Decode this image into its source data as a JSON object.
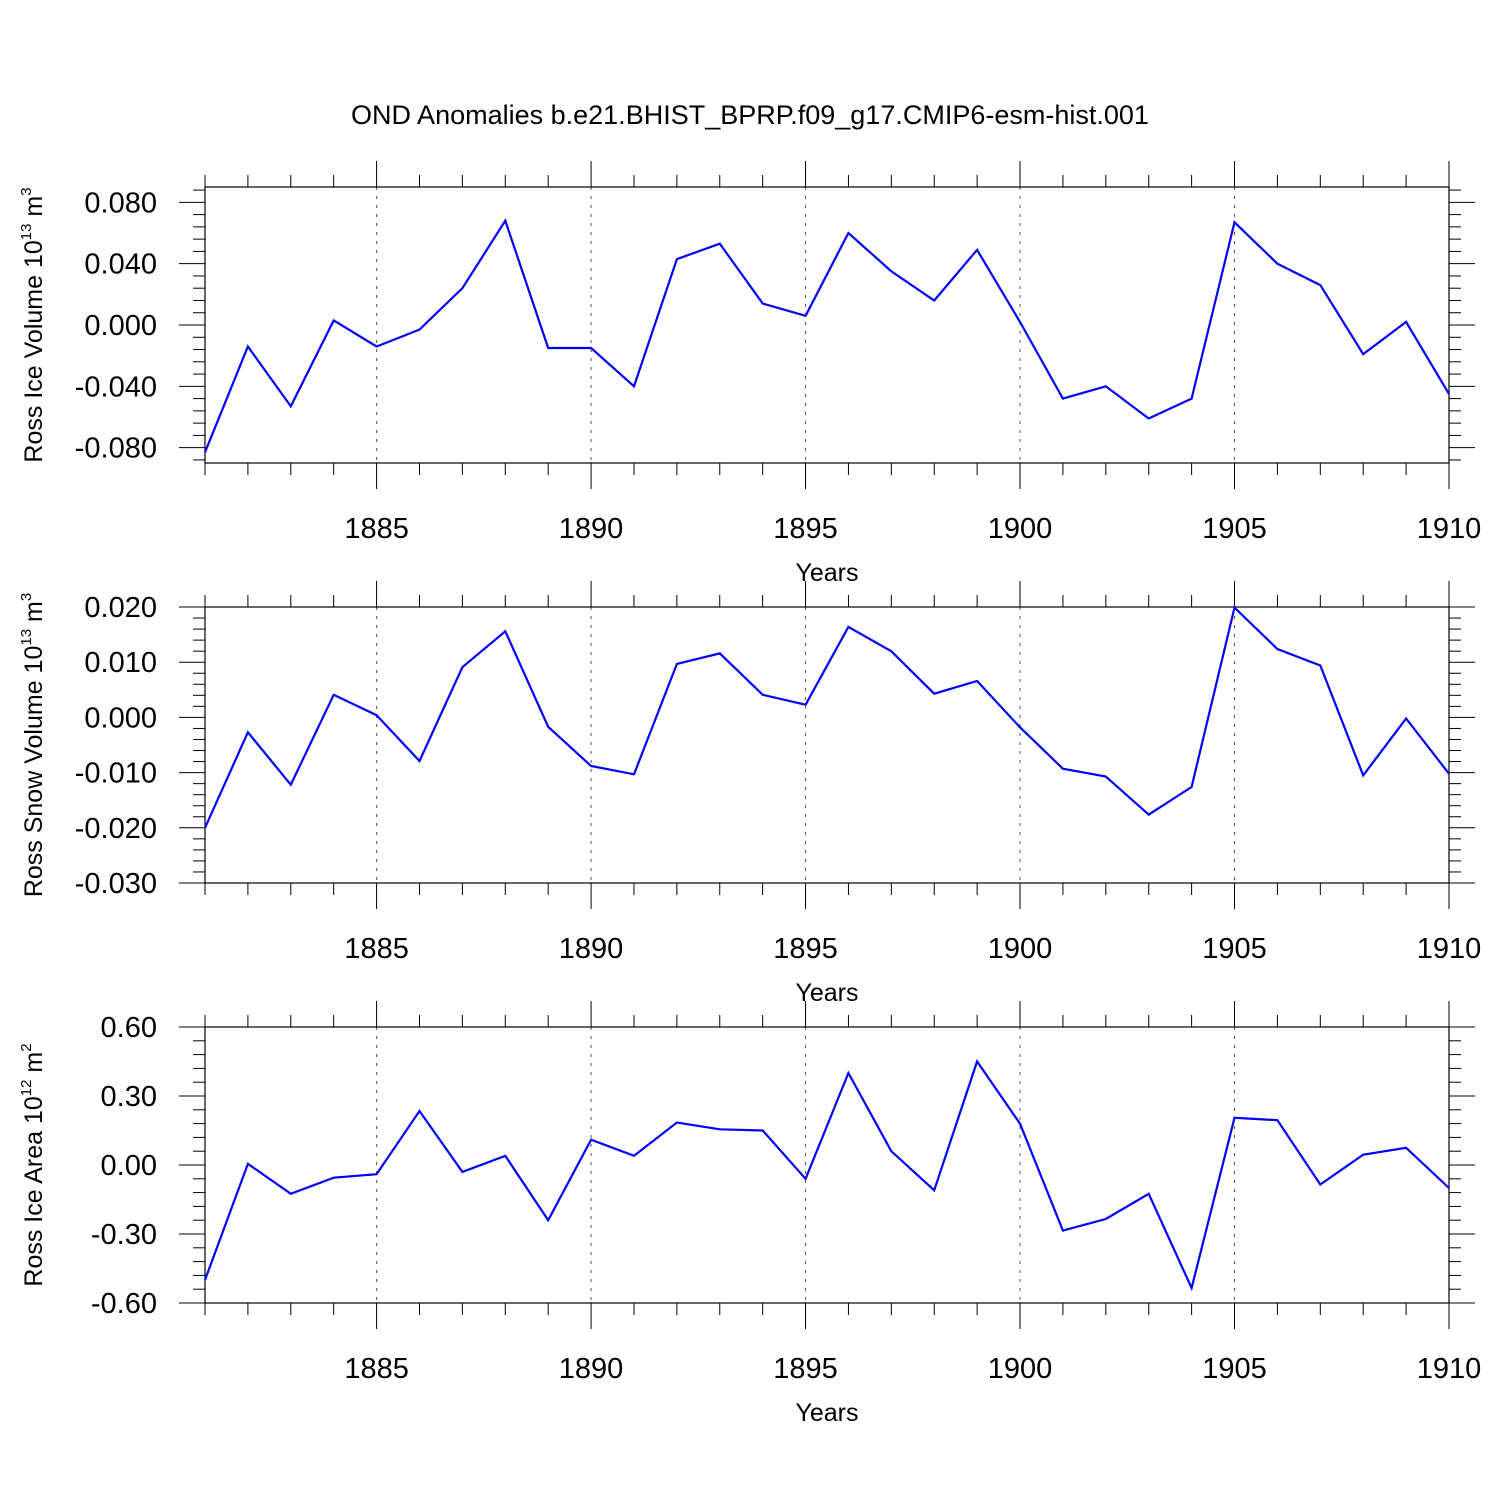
{
  "title": "OND Anomalies b.e21.BHIST_BPRP.f09_g17.CMIP6-esm-hist.001",
  "colors": {
    "line": "#0000ff",
    "axis": "#000000",
    "grid": "#555555"
  },
  "chart_data": [
    {
      "type": "line",
      "ylabel": {
        "main": "Ross Ice Volume 10",
        "exp": "13",
        "unit": " m",
        "unit_exp": "3"
      },
      "xlabel": "Years",
      "xlim": [
        1881,
        1910
      ],
      "ylim": [
        -0.09,
        0.09
      ],
      "yticks": [
        -0.08,
        -0.04,
        0.0,
        0.04,
        0.08
      ],
      "ytick_labels": [
        "-0.080",
        "-0.040",
        "0.000",
        "0.040",
        "0.080"
      ],
      "xticks": [
        1885,
        1890,
        1895,
        1900,
        1905,
        1910
      ],
      "xtick_labels": [
        "1885",
        "1890",
        "1895",
        "1900",
        "1905",
        "1910"
      ],
      "grid": "vertical-dashed",
      "series": [
        {
          "x": [
            1881,
            1882,
            1883,
            1884,
            1885,
            1886,
            1887,
            1888,
            1889,
            1890,
            1891,
            1892,
            1893,
            1894,
            1895,
            1896,
            1897,
            1898,
            1899,
            1900,
            1901,
            1902,
            1903,
            1904,
            1905,
            1906,
            1907,
            1908,
            1909,
            1910
          ],
          "values": [
            -0.083,
            -0.014,
            -0.053,
            0.003,
            -0.014,
            -0.003,
            0.024,
            0.068,
            -0.015,
            -0.015,
            -0.04,
            0.043,
            0.053,
            0.014,
            0.006,
            0.06,
            0.035,
            0.016,
            0.049,
            0.002,
            -0.048,
            -0.04,
            -0.061,
            -0.048,
            0.067,
            0.04,
            0.026,
            -0.019,
            0.002,
            -0.045
          ]
        }
      ]
    },
    {
      "type": "line",
      "ylabel": {
        "main": "Ross Snow Volume 10",
        "exp": "13",
        "unit": " m",
        "unit_exp": "3"
      },
      "xlabel": "Years",
      "xlim": [
        1881,
        1910
      ],
      "ylim": [
        -0.03,
        0.02
      ],
      "yticks": [
        -0.03,
        -0.02,
        -0.01,
        0.0,
        0.01,
        0.02
      ],
      "ytick_labels": [
        "-0.030",
        "-0.020",
        "-0.010",
        "0.000",
        "0.010",
        "0.020"
      ],
      "xticks": [
        1885,
        1890,
        1895,
        1900,
        1905,
        1910
      ],
      "xtick_labels": [
        "1885",
        "1890",
        "1895",
        "1900",
        "1905",
        "1910"
      ],
      "grid": "vertical-dashed",
      "series": [
        {
          "x": [
            1881,
            1882,
            1883,
            1884,
            1885,
            1886,
            1887,
            1888,
            1889,
            1890,
            1891,
            1892,
            1893,
            1894,
            1895,
            1896,
            1897,
            1898,
            1899,
            1900,
            1901,
            1902,
            1903,
            1904,
            1905,
            1906,
            1907,
            1908,
            1909,
            1910
          ],
          "values": [
            -0.02,
            -0.0027,
            -0.0122,
            0.0041,
            0.0004,
            -0.0079,
            0.0091,
            0.0156,
            -0.0017,
            -0.0088,
            -0.0103,
            0.0097,
            0.0116,
            0.0041,
            0.0023,
            0.0164,
            0.012,
            0.0043,
            0.0066,
            -0.0018,
            -0.0093,
            -0.0107,
            -0.0176,
            -0.0126,
            0.0199,
            0.0124,
            0.0094,
            -0.0105,
            -0.0002,
            -0.0102
          ]
        }
      ]
    },
    {
      "type": "line",
      "ylabel": {
        "main": "Ross Ice Area 10",
        "exp": "12",
        "unit": " m",
        "unit_exp": "2"
      },
      "xlabel": "Years",
      "xlim": [
        1881,
        1910
      ],
      "ylim": [
        -0.6,
        0.6
      ],
      "yticks": [
        -0.6,
        -0.3,
        0.0,
        0.3,
        0.6
      ],
      "ytick_labels": [
        "-0.60",
        "-0.30",
        "0.00",
        "0.30",
        "0.60"
      ],
      "xticks": [
        1885,
        1890,
        1895,
        1900,
        1905,
        1910
      ],
      "xtick_labels": [
        "1885",
        "1890",
        "1895",
        "1900",
        "1905",
        "1910"
      ],
      "grid": "vertical-dashed",
      "series": [
        {
          "x": [
            1881,
            1882,
            1883,
            1884,
            1885,
            1886,
            1887,
            1888,
            1889,
            1890,
            1891,
            1892,
            1893,
            1894,
            1895,
            1896,
            1897,
            1898,
            1899,
            1900,
            1901,
            1902,
            1903,
            1904,
            1905,
            1906,
            1907,
            1908,
            1909,
            1910
          ],
          "values": [
            -0.5,
            0.005,
            -0.125,
            -0.055,
            -0.04,
            0.235,
            -0.03,
            0.04,
            -0.24,
            0.11,
            0.04,
            0.185,
            0.155,
            0.15,
            -0.06,
            0.4,
            0.06,
            -0.11,
            0.45,
            0.18,
            -0.285,
            -0.235,
            -0.125,
            -0.535,
            0.205,
            0.195,
            -0.085,
            0.045,
            0.075,
            -0.1
          ]
        }
      ]
    }
  ]
}
